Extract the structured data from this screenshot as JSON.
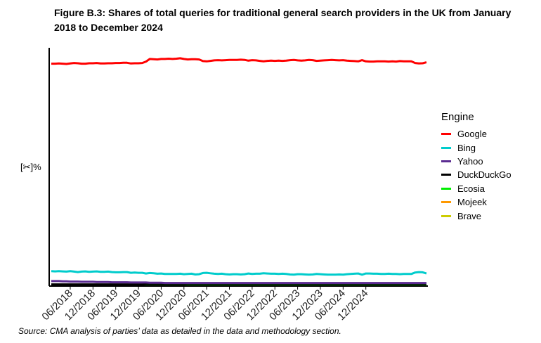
{
  "title": "Figure B.3: Shares of total queries for traditional general search providers in the UK from January 2018 to December 2024",
  "ylabel": "[✂]%",
  "source": "Source: CMA analysis of parties’ data as detailed in the data and methodology section.",
  "legend_title": "Engine",
  "chart_data": {
    "type": "line",
    "title": "Figure B.3: Shares of total queries for traditional general search providers in the UK from January 2018 to December 2024",
    "xlabel": "",
    "ylabel": "[✂]%",
    "x_ticks": [
      "06/2018",
      "12/2018",
      "06/2019",
      "12/2019",
      "06/2020",
      "12/2020",
      "06/2021",
      "12/2021",
      "06/2022",
      "12/2022",
      "06/2023",
      "12/2023",
      "06/2024",
      "12/2024"
    ],
    "x_range": [
      "01/2018",
      "12/2024"
    ],
    "y_range": [
      0,
      100
    ],
    "grid": false,
    "legend_position": "right",
    "series": [
      {
        "name": "Google",
        "color": "#ff0000",
        "values": [
          93.3,
          93.3,
          93.4,
          93.3,
          93.2,
          93.4,
          93.6,
          93.5,
          93.3,
          93.3,
          93.5,
          93.5,
          93.6,
          93.4,
          93.4,
          93.5,
          93.5,
          93.6,
          93.6,
          93.7,
          93.7,
          93.4,
          93.5,
          93.5,
          93.6,
          94.2,
          95.3,
          95.2,
          95.1,
          95.3,
          95.3,
          95.4,
          95.3,
          95.4,
          95.6,
          95.3,
          95.1,
          95.2,
          95.2,
          95.1,
          94.4,
          94.3,
          94.5,
          94.7,
          94.8,
          94.7,
          94.8,
          94.9,
          94.9,
          94.9,
          95.0,
          94.9,
          94.6,
          94.8,
          94.7,
          94.5,
          94.3,
          94.5,
          94.6,
          94.5,
          94.6,
          94.5,
          94.6,
          94.8,
          94.9,
          94.7,
          94.6,
          94.7,
          94.9,
          94.8,
          94.5,
          94.6,
          94.7,
          94.8,
          94.9,
          94.8,
          94.7,
          94.8,
          94.6,
          94.5,
          94.4,
          94.3,
          94.8,
          94.3,
          94.2,
          94.2,
          94.3,
          94.3,
          94.3,
          94.2,
          94.3,
          94.2,
          94.4,
          94.3,
          94.3,
          94.3,
          93.6,
          93.4,
          93.5,
          93.9
        ]
      },
      {
        "name": "Bing",
        "color": "#00cccc",
        "values": [
          6.0,
          5.9,
          6.0,
          5.9,
          5.8,
          6.0,
          5.8,
          5.6,
          5.8,
          5.9,
          5.7,
          5.8,
          5.9,
          5.7,
          5.7,
          5.8,
          5.6,
          5.5,
          5.5,
          5.6,
          5.6,
          5.3,
          5.4,
          5.3,
          5.3,
          5.0,
          5.2,
          5.1,
          4.9,
          5.0,
          4.8,
          4.8,
          4.8,
          4.8,
          4.9,
          4.7,
          4.8,
          4.9,
          4.6,
          4.7,
          5.2,
          5.3,
          5.1,
          4.9,
          4.8,
          4.9,
          4.7,
          4.6,
          4.7,
          4.7,
          4.6,
          4.7,
          5.0,
          4.8,
          4.9,
          4.9,
          5.1,
          5.0,
          4.9,
          4.9,
          4.8,
          4.9,
          4.8,
          4.6,
          4.5,
          4.7,
          4.7,
          4.6,
          4.5,
          4.6,
          4.8,
          4.7,
          4.6,
          4.5,
          4.5,
          4.5,
          4.6,
          4.5,
          4.7,
          4.8,
          4.9,
          5.0,
          4.5,
          5.0,
          5.0,
          4.9,
          4.9,
          4.8,
          4.8,
          4.9,
          4.8,
          4.8,
          4.7,
          4.8,
          4.8,
          4.8,
          5.4,
          5.6,
          5.5,
          5.0
        ]
      },
      {
        "name": "Yahoo",
        "color": "#5b2c91",
        "values": [
          1.8,
          1.8,
          1.8,
          1.7,
          1.7,
          1.6,
          1.6,
          1.6,
          1.5,
          1.5,
          1.5,
          1.5,
          1.4,
          1.4,
          1.4,
          1.4,
          1.3,
          1.3,
          1.3,
          1.3,
          1.3,
          1.2,
          1.2,
          1.2,
          1.2,
          1.2,
          1.1,
          1.1,
          1.1,
          1.1,
          1.0,
          1.0,
          1.0,
          1.0,
          1.0,
          1.0,
          1.0,
          1.0,
          1.0,
          1.0,
          1.0,
          1.0,
          1.0,
          1.0,
          1.0,
          1.0,
          1.0,
          1.0,
          1.0,
          1.0,
          1.0,
          1.0,
          1.0,
          1.0,
          1.0,
          1.0,
          1.0,
          1.0,
          1.0,
          1.0,
          1.0,
          1.0,
          1.0,
          1.0,
          1.0,
          1.0,
          1.0,
          1.0,
          1.0,
          1.0,
          1.0,
          1.0,
          1.0,
          1.0,
          1.0,
          1.0,
          1.0,
          1.0,
          1.0,
          1.0,
          1.0,
          1.0,
          1.0,
          1.0,
          1.0,
          1.0,
          1.0,
          1.0,
          1.0,
          1.0,
          1.0,
          1.0,
          1.0,
          1.0,
          1.0,
          1.0,
          1.0,
          1.0,
          1.0,
          1.0
        ]
      },
      {
        "name": "DuckDuckGo",
        "color": "#000000",
        "values": [
          0.4,
          0.4,
          0.4,
          0.4,
          0.4,
          0.4,
          0.4,
          0.4,
          0.4,
          0.4,
          0.4,
          0.4,
          0.4,
          0.4,
          0.4,
          0.4,
          0.4,
          0.4,
          0.4,
          0.4,
          0.4,
          0.4,
          0.4,
          0.4,
          0.4,
          0.5,
          0.5,
          0.5,
          0.5,
          0.5,
          0.5,
          0.5,
          0.5,
          0.5,
          0.5,
          0.5,
          0.6,
          0.6,
          0.6,
          0.6,
          0.6,
          0.6,
          0.6,
          0.6,
          0.6,
          0.6,
          0.6,
          0.6,
          0.6,
          0.6,
          0.6,
          0.6,
          0.6,
          0.6,
          0.6,
          0.6,
          0.6,
          0.6,
          0.6,
          0.6,
          0.6,
          0.6,
          0.6,
          0.6,
          0.6,
          0.6,
          0.6,
          0.6,
          0.6,
          0.6,
          0.6,
          0.6,
          0.6,
          0.6,
          0.6,
          0.6,
          0.6,
          0.6,
          0.6,
          0.6,
          0.6,
          0.6,
          0.6,
          0.6,
          0.6,
          0.6,
          0.6,
          0.6,
          0.6,
          0.6,
          0.6,
          0.6,
          0.6,
          0.6,
          0.6,
          0.6,
          0.6,
          0.6,
          0.6,
          0.6
        ]
      },
      {
        "name": "Ecosia",
        "color": "#00ee00",
        "values": [
          0.3,
          0.3,
          0.3,
          0.3,
          0.3,
          0.3,
          0.3,
          0.3,
          0.3,
          0.3,
          0.3,
          0.3,
          0.3,
          0.3,
          0.3,
          0.3,
          0.3,
          0.3,
          0.3,
          0.3,
          0.3,
          0.3,
          0.3,
          0.3,
          0.3,
          0.3,
          0.3,
          0.3,
          0.3,
          0.3,
          0.3,
          0.3,
          0.3,
          0.3,
          0.3,
          0.3,
          0.3,
          0.3,
          0.3,
          0.3,
          0.3,
          0.3,
          0.3,
          0.3,
          0.3,
          0.3,
          0.3,
          0.3,
          0.3,
          0.3,
          0.3,
          0.3,
          0.3,
          0.3,
          0.3,
          0.3,
          0.3,
          0.3,
          0.3,
          0.3,
          0.3,
          0.3,
          0.3,
          0.3,
          0.3,
          0.3,
          0.3,
          0.3,
          0.3,
          0.3,
          0.3,
          0.3,
          0.3,
          0.3,
          0.3,
          0.3,
          0.3,
          0.3,
          0.3,
          0.3,
          0.3,
          0.3,
          0.3,
          0.3,
          0.3,
          0.3,
          0.3,
          0.3,
          0.3,
          0.3,
          0.3,
          0.3,
          0.3,
          0.3,
          0.3,
          0.3,
          0.3,
          0.3,
          0.3,
          0.3
        ]
      },
      {
        "name": "Mojeek",
        "color": "#ff9900",
        "values": [
          0.05,
          0.05,
          0.05,
          0.05,
          0.05,
          0.05,
          0.05,
          0.05,
          0.05,
          0.05,
          0.05,
          0.05,
          0.05,
          0.05,
          0.05,
          0.05,
          0.05,
          0.05,
          0.05,
          0.05,
          0.05,
          0.05,
          0.05,
          0.05,
          0.05,
          0.05,
          0.05,
          0.05,
          0.05,
          0.05,
          0.05,
          0.05,
          0.05,
          0.05,
          0.05,
          0.05,
          0.05,
          0.05,
          0.05,
          0.05,
          0.05,
          0.05,
          0.05,
          0.05,
          0.05,
          0.05,
          0.05,
          0.05,
          0.05,
          0.05,
          0.05,
          0.05,
          0.05,
          0.05,
          0.05,
          0.05,
          0.05,
          0.05,
          0.05,
          0.05,
          0.05,
          0.05,
          0.05,
          0.05,
          0.05,
          0.05,
          0.05,
          0.05,
          0.05,
          0.05,
          0.05,
          0.05,
          0.05,
          0.05,
          0.05,
          0.05,
          0.05,
          0.05,
          0.05,
          0.05,
          0.05,
          0.05,
          0.05,
          0.05,
          0.05,
          0.05,
          0.05,
          0.05,
          0.05,
          0.05,
          0.05,
          0.05,
          0.05,
          0.05,
          0.05,
          0.05,
          0.05,
          0.05,
          0.05,
          0.05
        ]
      },
      {
        "name": "Brave",
        "color": "#cccc00",
        "values": [
          0.1,
          0.1,
          0.1,
          0.1,
          0.1,
          0.1,
          0.1,
          0.1,
          0.1,
          0.1,
          0.1,
          0.1,
          0.1,
          0.1,
          0.1,
          0.1,
          0.1,
          0.1,
          0.1,
          0.1,
          0.1,
          0.1,
          0.1,
          0.1,
          0.1,
          0.1,
          0.1,
          0.1,
          0.1,
          0.1,
          0.1,
          0.1,
          0.1,
          0.1,
          0.1,
          0.1,
          0.1,
          0.1,
          0.1,
          0.1,
          0.1,
          0.1,
          0.1,
          0.1,
          0.1,
          0.1,
          0.1,
          0.1,
          0.1,
          0.1,
          0.1,
          0.1,
          0.1,
          0.1,
          0.1,
          0.1,
          0.1,
          0.1,
          0.1,
          0.1,
          0.1,
          0.1,
          0.1,
          0.1,
          0.1,
          0.1,
          0.1,
          0.1,
          0.1,
          0.1,
          0.1,
          0.1,
          0.1,
          0.1,
          0.1,
          0.1,
          0.1,
          0.1,
          0.1,
          0.1,
          0.1,
          0.1,
          0.1,
          0.1,
          0.1,
          0.1,
          0.1,
          0.1,
          0.1,
          0.1,
          0.1,
          0.1,
          0.1,
          0.1,
          0.1,
          0.1,
          0.1,
          0.1,
          0.1,
          0.1
        ]
      }
    ]
  }
}
